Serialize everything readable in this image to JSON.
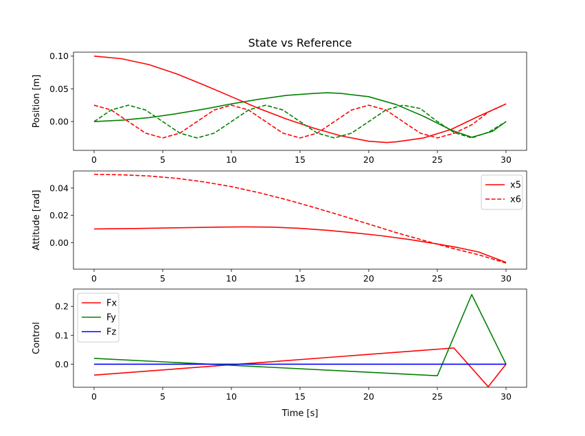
{
  "chart_data": [
    {
      "type": "line",
      "title": "State vs Reference",
      "xlabel": "",
      "ylabel": "Position [m]",
      "xlim": [
        -1.5,
        31.5
      ],
      "ylim": [
        -0.044,
        0.106
      ],
      "xticks": [
        0,
        5,
        10,
        15,
        20,
        25,
        30
      ],
      "yticks": [
        0.0,
        0.05,
        0.1
      ],
      "ytick_labels": [
        "0.00",
        "0.05",
        "0.10"
      ],
      "legend": null,
      "series": [
        {
          "color": "#ff0000",
          "dash": "solid",
          "x": [
            0,
            2,
            4,
            6,
            8,
            10,
            12,
            14,
            16,
            18,
            20,
            21.3,
            22,
            24,
            26,
            28,
            30
          ],
          "y": [
            0.1,
            0.096,
            0.087,
            0.073,
            0.056,
            0.038,
            0.02,
            0.004,
            -0.01,
            -0.022,
            -0.03,
            -0.032,
            -0.031,
            -0.025,
            -0.012,
            0.008,
            0.027
          ]
        },
        {
          "color": "#008000",
          "dash": "solid",
          "x": [
            0,
            2,
            4,
            6,
            8,
            10,
            12,
            14,
            16,
            17,
            18,
            20,
            22,
            24,
            26,
            27.5,
            29,
            30
          ],
          "y": [
            0.0,
            0.002,
            0.006,
            0.012,
            0.019,
            0.027,
            0.034,
            0.04,
            0.043,
            0.044,
            0.043,
            0.038,
            0.026,
            0.008,
            -0.013,
            -0.024,
            -0.015,
            0.0
          ]
        },
        {
          "color": "#ff0000",
          "dash": "dashed",
          "x": [
            0,
            1.25,
            2.5,
            3.75,
            5,
            6.25,
            7.5,
            8.75,
            10,
            11.25,
            12.5,
            13.75,
            15,
            16.25,
            17.5,
            18.75,
            20,
            21.25,
            22.5,
            23.75,
            25,
            26.25,
            27.5,
            28.75,
            30
          ],
          "y": [
            0.025,
            0.0177,
            0.0,
            -0.0177,
            -0.025,
            -0.0177,
            0.0,
            0.0177,
            0.025,
            0.0177,
            0.0,
            -0.0177,
            -0.025,
            -0.0177,
            0.0,
            0.0177,
            0.025,
            0.0177,
            0.0,
            -0.0177,
            -0.025,
            -0.0177,
            -0.005,
            0.015,
            0.027
          ]
        },
        {
          "color": "#008000",
          "dash": "dashed",
          "x": [
            0,
            1.25,
            2.5,
            3.75,
            5,
            6.25,
            7.5,
            8.75,
            10,
            11.25,
            12.5,
            13.75,
            15,
            16.25,
            17.5,
            18.75,
            20,
            21.25,
            22.5,
            23.75,
            25,
            26.25,
            27.5,
            28.75,
            30
          ],
          "y": [
            0.0,
            0.0177,
            0.025,
            0.0177,
            0.0,
            -0.0177,
            -0.025,
            -0.0177,
            0.0,
            0.0177,
            0.025,
            0.0177,
            0.0,
            -0.0177,
            -0.025,
            -0.0177,
            0.0,
            0.0177,
            0.025,
            0.02,
            0.0,
            -0.017,
            -0.025,
            -0.016,
            0.0
          ]
        }
      ]
    },
    {
      "type": "line",
      "title": "",
      "xlabel": "",
      "ylabel": "Attitude [rad]",
      "xlim": [
        -1.5,
        31.5
      ],
      "ylim": [
        -0.0195,
        0.0525
      ],
      "xticks": [
        0,
        5,
        10,
        15,
        20,
        25,
        30
      ],
      "yticks": [
        0.0,
        0.02,
        0.04
      ],
      "ytick_labels": [
        "0.00",
        "0.02",
        "0.04"
      ],
      "legend": "top-right",
      "series": [
        {
          "name": "x5",
          "color": "#ff0000",
          "dash": "solid",
          "x": [
            0,
            3,
            6,
            9,
            11,
            13,
            15,
            17,
            19,
            21,
            23,
            25,
            26.5,
            28,
            30
          ],
          "y": [
            0.01,
            0.0103,
            0.0108,
            0.0113,
            0.0115,
            0.0113,
            0.0104,
            0.009,
            0.0071,
            0.0049,
            0.0022,
            -0.001,
            -0.0037,
            -0.0069,
            -0.0145
          ]
        },
        {
          "name": "x6",
          "color": "#ff0000",
          "dash": "dashed",
          "x": [
            0,
            2,
            4,
            6,
            8,
            10,
            12,
            14,
            16,
            18,
            20,
            22,
            24,
            26,
            28,
            30
          ],
          "y": [
            0.05,
            0.0497,
            0.0488,
            0.0471,
            0.0445,
            0.041,
            0.0366,
            0.0315,
            0.0258,
            0.0198,
            0.0136,
            0.0073,
            0.0016,
            -0.004,
            -0.009,
            -0.015
          ]
        }
      ]
    },
    {
      "type": "line",
      "title": "",
      "xlabel": "Time [s]",
      "ylabel": "Control",
      "xlim": [
        -1.5,
        31.5
      ],
      "ylim": [
        -0.08,
        0.26
      ],
      "xticks": [
        0,
        5,
        10,
        15,
        20,
        25,
        30
      ],
      "yticks": [
        0.0,
        0.1,
        0.2
      ],
      "ytick_labels": [
        "0.0",
        "0.1",
        "0.2"
      ],
      "legend": "top-left",
      "series": [
        {
          "name": "Fx",
          "color": "#ff0000",
          "dash": "solid",
          "x": [
            0,
            26.2,
            28.7,
            30
          ],
          "y": [
            -0.038,
            0.056,
            -0.078,
            0.0
          ]
        },
        {
          "name": "Fy",
          "color": "#008000",
          "dash": "solid",
          "x": [
            0,
            25,
            27.5,
            30
          ],
          "y": [
            0.02,
            -0.04,
            0.241,
            0.0
          ]
        },
        {
          "name": "Fz",
          "color": "#0000ff",
          "dash": "solid",
          "x": [
            0,
            30
          ],
          "y": [
            0.0,
            0.0
          ]
        }
      ]
    }
  ]
}
